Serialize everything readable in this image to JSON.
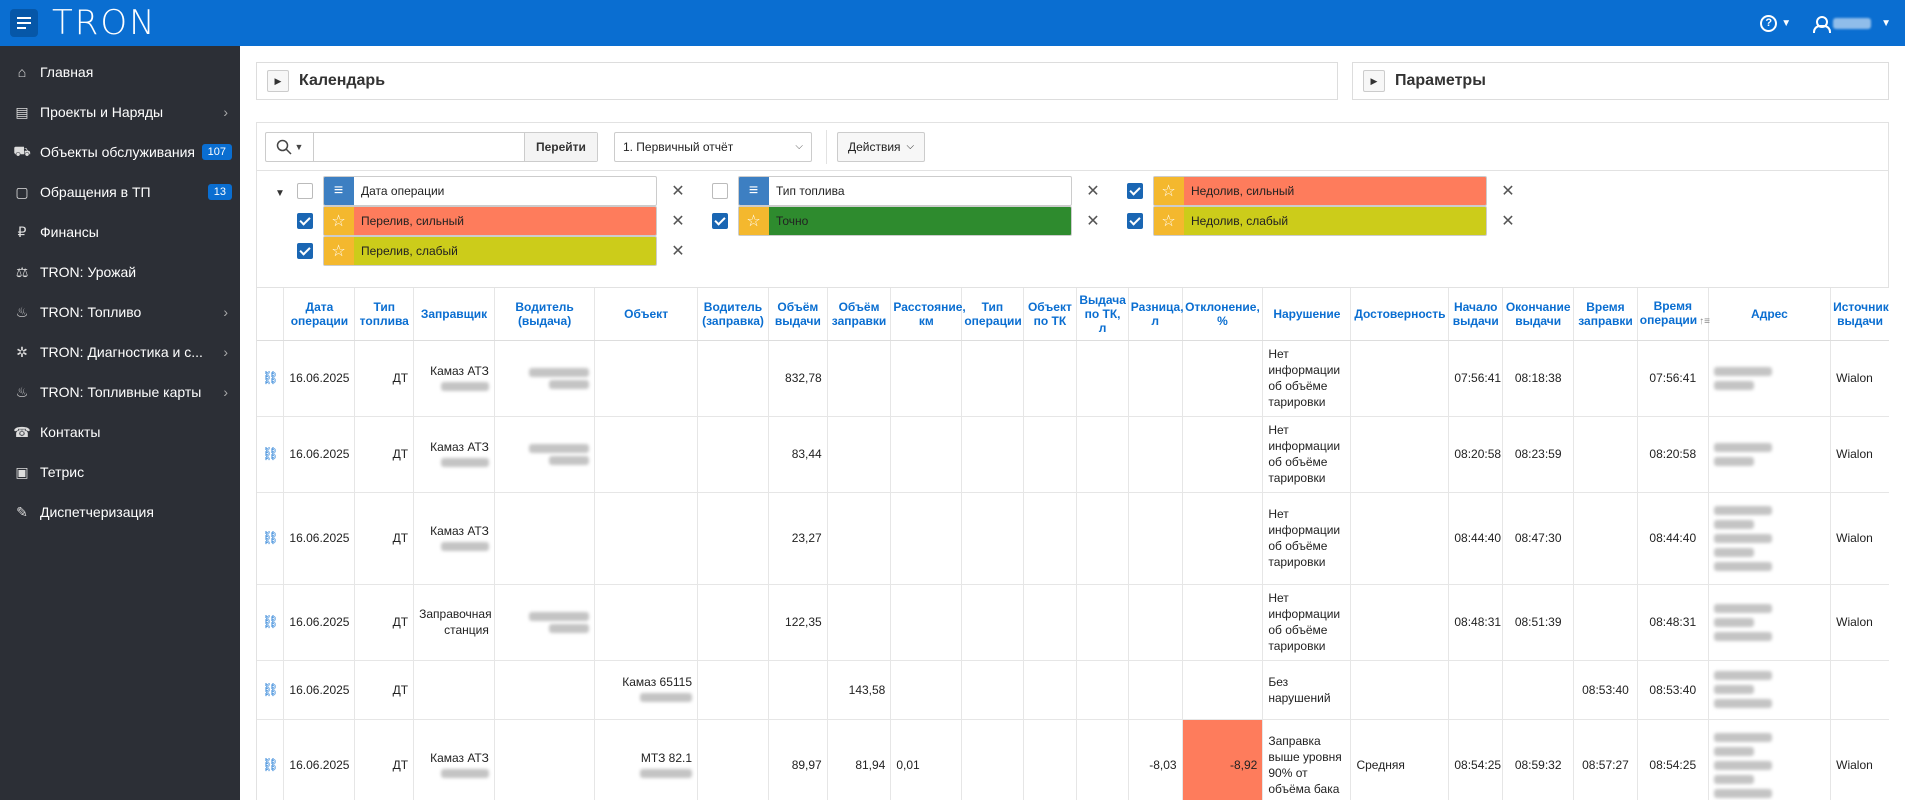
{
  "header": {
    "logo": "TRON",
    "help_icon": "?",
    "user_icon": "user-icon"
  },
  "sidebar": {
    "items": [
      {
        "label": "Главная",
        "icon": "⌂",
        "arrow": false,
        "badge": ""
      },
      {
        "label": "Проекты и Наряды",
        "icon": "▤",
        "arrow": true,
        "badge": ""
      },
      {
        "label": "Объекты обслуживания",
        "icon": "⛟",
        "arrow": false,
        "badge": "107"
      },
      {
        "label": "Обращения в ТП",
        "icon": "▢",
        "arrow": false,
        "badge": "13"
      },
      {
        "label": "Финансы",
        "icon": "₽",
        "arrow": false,
        "badge": ""
      },
      {
        "label": "TRON: Урожай",
        "icon": "⚖",
        "arrow": false,
        "badge": ""
      },
      {
        "label": "TRON: Топливо",
        "icon": "♨",
        "arrow": true,
        "badge": ""
      },
      {
        "label": "TRON: Диагностика и с...",
        "icon": "✲",
        "arrow": true,
        "badge": ""
      },
      {
        "label": "TRON: Топливные карты",
        "icon": "♨",
        "arrow": true,
        "badge": ""
      },
      {
        "label": "Контакты",
        "icon": "☎",
        "arrow": false,
        "badge": ""
      },
      {
        "label": "Тетрис",
        "icon": "▣",
        "arrow": false,
        "badge": ""
      },
      {
        "label": "Диспетчеризация",
        "icon": "✎",
        "arrow": false,
        "badge": ""
      }
    ]
  },
  "panels": {
    "calendar": "Календарь",
    "params": "Параметры"
  },
  "toolbar": {
    "search_value": "",
    "go_label": "Перейти",
    "report_select": "1. Первичный отчёт",
    "actions_label": "Действия"
  },
  "filters": [
    {
      "label": "Дата операции",
      "checked": false,
      "type": "list",
      "color": "#ffffff",
      "icon_color": "#3d7fc2"
    },
    {
      "label": "Тип топлива",
      "checked": false,
      "type": "list",
      "color": "#ffffff",
      "icon_color": "#3d7fc2"
    },
    {
      "label": "Недолив, сильный",
      "checked": true,
      "type": "star",
      "color": "#fe7c5c",
      "icon_color": "#f4b82e"
    },
    {
      "label": "Перелив, сильный",
      "checked": true,
      "type": "star",
      "color": "#fe7c5c",
      "icon_color": "#f4b82e"
    },
    {
      "label": "Точно",
      "checked": true,
      "type": "star",
      "color": "#2e8b2e",
      "icon_color": "#f4b82e"
    },
    {
      "label": "Недолив, слабый",
      "checked": true,
      "type": "star",
      "color": "#cccc1a",
      "icon_color": "#f4b82e"
    },
    {
      "label": "Перелив, слабый",
      "checked": true,
      "type": "star",
      "color": "#cccc1a",
      "icon_color": "#f4b82e"
    }
  ],
  "table": {
    "headers": [
      "",
      "Дата операции",
      "Тип топлива",
      "Заправщик",
      "Водитель (выдача)",
      "Объект",
      "Водитель (заправка)",
      "Объём выдачи",
      "Объём заправки",
      "Расстояние, км",
      "Тип операции",
      "Объект по ТК",
      "Выдача по ТК, л",
      "Разница, л",
      "Отклонение, %",
      "Нарушение",
      "Достоверность",
      "Начало выдачи",
      "Окончание выдачи",
      "Время заправки",
      "Время операции",
      "Адрес",
      "Источник выдачи"
    ],
    "rows": [
      {
        "date": "16.06.2025",
        "fuel": "ДТ",
        "refueler": "Камаз АТЗ",
        "refueler_blur": true,
        "driver_out_blur": true,
        "object": "",
        "object_blur": false,
        "driver_in_blur": false,
        "vol_out": "832,78",
        "vol_in": "",
        "dist": "",
        "op_type": "",
        "obj_tk": "",
        "out_tk": "",
        "diff": "",
        "dev": "",
        "dev_hl": false,
        "violation": "Нет информации об объёме тарировки",
        "reliability": "",
        "start": "07:56:41",
        "end": "08:18:38",
        "fill_time": "",
        "op_time": "07:56:41",
        "addr_lines": 2,
        "source": "Wialon",
        "h": 76
      },
      {
        "date": "16.06.2025",
        "fuel": "ДТ",
        "refueler": "Камаз АТЗ",
        "refueler_blur": true,
        "driver_out_blur": true,
        "object": "",
        "object_blur": false,
        "driver_in_blur": false,
        "vol_out": "83,44",
        "vol_in": "",
        "dist": "",
        "op_type": "",
        "obj_tk": "",
        "out_tk": "",
        "diff": "",
        "dev": "",
        "dev_hl": false,
        "violation": "Нет информации об объёме тарировки",
        "reliability": "",
        "start": "08:20:58",
        "end": "08:23:59",
        "fill_time": "",
        "op_time": "08:20:58",
        "addr_lines": 2,
        "source": "Wialon",
        "h": 76
      },
      {
        "date": "16.06.2025",
        "fuel": "ДТ",
        "refueler": "Камаз АТЗ",
        "refueler_blur": true,
        "driver_out_blur": false,
        "object": "",
        "object_blur": false,
        "driver_in_blur": false,
        "vol_out": "23,27",
        "vol_in": "",
        "dist": "",
        "op_type": "",
        "obj_tk": "",
        "out_tk": "",
        "diff": "",
        "dev": "",
        "dev_hl": false,
        "violation": "Нет информации об объёме тарировки",
        "reliability": "",
        "start": "08:44:40",
        "end": "08:47:30",
        "fill_time": "",
        "op_time": "08:44:40",
        "addr_lines": 5,
        "source": "Wialon",
        "h": 92
      },
      {
        "date": "16.06.2025",
        "fuel": "ДТ",
        "refueler": "Заправочная станция",
        "refueler_blur": false,
        "driver_out_blur": true,
        "object": "",
        "object_blur": false,
        "driver_in_blur": false,
        "vol_out": "122,35",
        "vol_in": "",
        "dist": "",
        "op_type": "",
        "obj_tk": "",
        "out_tk": "",
        "diff": "",
        "dev": "",
        "dev_hl": false,
        "violation": "Нет информации об объёме тарировки",
        "reliability": "",
        "start": "08:48:31",
        "end": "08:51:39",
        "fill_time": "",
        "op_time": "08:48:31",
        "addr_lines": 3,
        "source": "Wialon",
        "h": 76
      },
      {
        "date": "16.06.2025",
        "fuel": "ДТ",
        "refueler": "",
        "refueler_blur": false,
        "driver_out_blur": false,
        "object": "Камаз 65115",
        "object_blur": true,
        "driver_in_blur": false,
        "vol_out": "",
        "vol_in": "143,58",
        "dist": "",
        "op_type": "",
        "obj_tk": "",
        "out_tk": "",
        "diff": "",
        "dev": "",
        "dev_hl": false,
        "violation": "Без нарушений",
        "reliability": "",
        "start": "",
        "end": "",
        "fill_time": "08:53:40",
        "op_time": "08:53:40",
        "addr_lines": 3,
        "source": "",
        "h": 59
      },
      {
        "date": "16.06.2025",
        "fuel": "ДТ",
        "refueler": "Камаз АТЗ",
        "refueler_blur": true,
        "driver_out_blur": false,
        "object": "МТЗ 82.1",
        "object_blur": true,
        "driver_in_blur": false,
        "vol_out": "89,97",
        "vol_in": "81,94",
        "dist": "0,01",
        "op_type": "",
        "obj_tk": "",
        "out_tk": "",
        "diff": "-8,03",
        "dev": "-8,92",
        "dev_hl": true,
        "violation": "Заправка выше уровня 90% от объёма бака",
        "reliability": "Средняя",
        "start": "08:54:25",
        "end": "08:59:32",
        "fill_time": "08:57:27",
        "op_time": "08:54:25",
        "addr_lines": 5,
        "source": "Wialon",
        "h": 92
      }
    ]
  }
}
